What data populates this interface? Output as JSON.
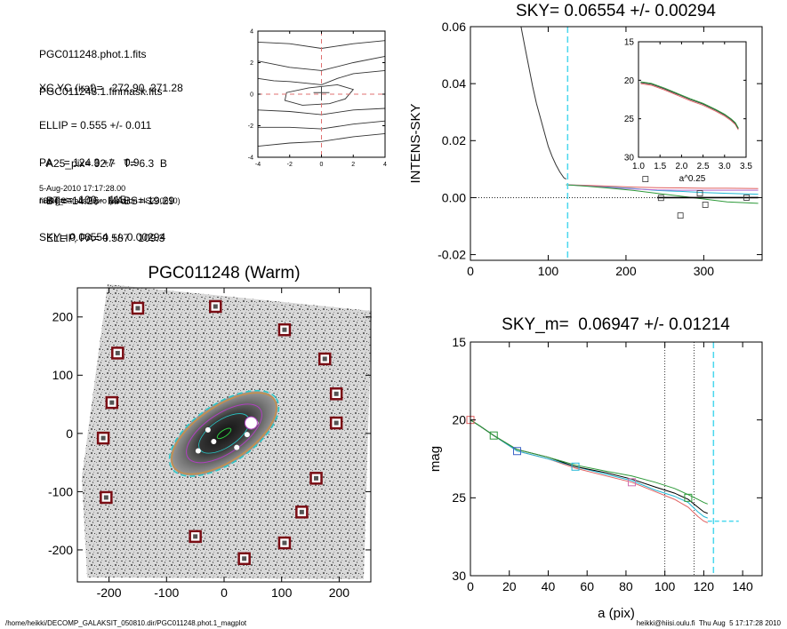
{
  "info": {
    "lines_top": [
      "PGC011248.phot.1.fits",
      "PGC011248.1.finmask.fits"
    ],
    "lines_mid": [
      "XC,YC (iraf)=   272.90, 271.28",
      "ELLIP = 0.555 +/- 0.011",
      "PA    = 124.3 +/-   0.9",
      "range=  100.-  115.",
      "SKY= 0.06554 +/- 0.00294"
    ],
    "lines_low": [
      "A25_pix= 92.7   T= 6.3  B",
      "BT=  14.26   MABS=-19.29",
      "ELLIP, PA= 0.587   109.3"
    ],
    "timestamp": "5-Aug-2010 17:17:28.00",
    "program": "make_datalist0.pro (version HS230610)"
  },
  "footer": {
    "path": "/home/heikki/DECOMP_GALAKSIT_050810.dir/PGC011248.phot.1_magplot",
    "user_date": "heikki@hiisi.oulu.fi  Thu Aug  5 17:17:28 2010"
  },
  "chart_data": [
    {
      "id": "contour-panel",
      "type": "contour",
      "xlim": [
        -4,
        4
      ],
      "ylim": [
        -4,
        4
      ],
      "xticks": [
        -4,
        -2,
        0,
        2,
        4
      ],
      "yticks": [
        -4,
        -2,
        0,
        2,
        4
      ],
      "xtick_labels": [
        "-4",
        "-2",
        "0",
        "2",
        "4"
      ],
      "ytick_labels": [
        "-4",
        "-2",
        "0",
        "2",
        "4"
      ],
      "guide_x": 0,
      "guide_y": 0,
      "colors": {
        "contour": "#333333",
        "guide": "#e07070"
      }
    },
    {
      "id": "sky-panel",
      "type": "line",
      "title": "SKY= 0.06554 +/- 0.00294",
      "ylabel": "INTENS-SKY",
      "xlim": [
        0,
        375
      ],
      "ylim": [
        -0.022,
        0.06
      ],
      "xticks": [
        0,
        100,
        200,
        300
      ],
      "yticks": [
        -0.02,
        0.0,
        0.02,
        0.04,
        0.06
      ],
      "xtick_labels": [
        "0",
        "100",
        "200",
        "300"
      ],
      "ytick_labels": [
        "-0.02",
        "0.00",
        "0.02",
        "0.04",
        "0.06"
      ],
      "vline_x": 125,
      "profile": {
        "x": [
          65,
          70,
          75,
          80,
          85,
          90,
          95,
          100,
          105,
          110,
          115,
          120,
          123
        ],
        "y": [
          0.06,
          0.053,
          0.046,
          0.039,
          0.033,
          0.028,
          0.023,
          0.018,
          0.0145,
          0.0115,
          0.009,
          0.007,
          0.0065
        ]
      },
      "sky_lines": [
        {
          "color": "#22b8d6",
          "x": [
            123,
            150,
            180,
            210,
            240,
            270,
            300,
            330,
            370
          ],
          "y": [
            0.0045,
            0.0042,
            0.0037,
            0.0032,
            0.0025,
            0.0022,
            0.0018,
            0.0015,
            0.0012
          ]
        },
        {
          "color": "#e06060",
          "x": [
            123,
            150,
            180,
            210,
            240,
            270,
            300,
            330,
            370
          ],
          "y": [
            0.0045,
            0.0043,
            0.004,
            0.0037,
            0.0035,
            0.0034,
            0.0033,
            0.0033,
            0.0032
          ]
        },
        {
          "color": "#b06ad0",
          "x": [
            123,
            150,
            180,
            210,
            240,
            270,
            300,
            330,
            370
          ],
          "y": [
            0.0045,
            0.0041,
            0.0035,
            0.003,
            0.0027,
            0.0026,
            0.0026,
            0.0026,
            0.0026
          ]
        },
        {
          "color": "#2e9a3a",
          "x": [
            123,
            150,
            180,
            210,
            240,
            270,
            300,
            330,
            370
          ],
          "y": [
            0.0045,
            0.004,
            0.0033,
            0.0025,
            0.0015,
            0.0005,
            -0.0005,
            -0.0015,
            -0.002
          ]
        },
        {
          "color": "#000000",
          "x": [
            240,
            370
          ],
          "y": [
            0.0,
            0.0
          ]
        }
      ],
      "squares": {
        "x": [
          225,
          245,
          270,
          295,
          302,
          355
        ],
        "y": [
          0.0065,
          -0.0001,
          -0.0063,
          0.0015,
          -0.0025,
          0.0
        ]
      },
      "inset": {
        "xlim": [
          1.0,
          3.5
        ],
        "ylim": [
          15,
          30
        ],
        "xticks": [
          1.0,
          1.5,
          2.0,
          2.5,
          3.0,
          3.5
        ],
        "yticks": [
          15,
          20,
          25,
          30
        ],
        "xtick_labels": [
          "1.0",
          "1.5",
          "2.0",
          "2.5",
          "3.0",
          "3.5"
        ],
        "ytick_labels": [
          "15",
          "20",
          "25",
          "30"
        ],
        "xlabel": "a^0.25",
        "x": [
          1.05,
          1.3,
          1.6,
          1.9,
          2.2,
          2.5,
          2.8,
          3.0,
          3.15,
          3.25,
          3.32
        ],
        "y": [
          20.2,
          20.4,
          21.0,
          21.7,
          22.4,
          23.0,
          23.8,
          24.4,
          25.0,
          25.5,
          26.2
        ]
      }
    },
    {
      "id": "galaxy-image",
      "type": "image",
      "title": "PGC011248 (Warm)",
      "xlim": [
        -255,
        255
      ],
      "ylim": [
        -255,
        250
      ],
      "xticks": [
        -200,
        -100,
        0,
        100,
        200
      ],
      "yticks": [
        -200,
        -100,
        0,
        100,
        200
      ],
      "xtick_labels": [
        "-200",
        "-100",
        "0",
        "100",
        "200"
      ],
      "ytick_labels": [
        "-200",
        "-100",
        "0",
        "100",
        "200"
      ],
      "ellipse": {
        "cx": 0,
        "cy": 0,
        "a": 105,
        "b": 47,
        "angle": 34
      },
      "star_marks": [
        [
          -150,
          215
        ],
        [
          -15,
          218
        ],
        [
          105,
          178
        ],
        [
          -185,
          138
        ],
        [
          175,
          128
        ],
        [
          -195,
          53
        ],
        [
          195,
          68
        ],
        [
          -210,
          -8
        ],
        [
          195,
          18
        ],
        [
          -205,
          -110
        ],
        [
          160,
          -77
        ],
        [
          135,
          -135
        ],
        [
          -50,
          -177
        ],
        [
          105,
          -188
        ],
        [
          35,
          -215
        ]
      ],
      "colors": {
        "marker": "#7a0d14",
        "ellipse_outer": "#c89048",
        "ellipse_dash": "#28c8c8",
        "isophote": "#b040c0"
      }
    },
    {
      "id": "mag-panel",
      "type": "line",
      "title": "SKY_m=  0.06947 +/- 0.01214",
      "xlabel": "a (pix)",
      "ylabel": "mag",
      "xlim": [
        0,
        150
      ],
      "ylim": [
        15,
        30
      ],
      "y_inverted": true,
      "xticks": [
        0,
        20,
        40,
        60,
        80,
        100,
        120,
        140
      ],
      "yticks": [
        15,
        20,
        25,
        30
      ],
      "xtick_labels": [
        "0",
        "20",
        "40",
        "60",
        "80",
        "100",
        "120",
        "140"
      ],
      "ytick_labels": [
        "15",
        "20",
        "25",
        "30"
      ],
      "dotted_vlines": [
        100,
        115
      ],
      "dashed_vline": 125,
      "hline_segment": {
        "x": [
          122,
          138
        ],
        "y": 26.5
      },
      "series": [
        {
          "color": "#e06060",
          "x": [
            0,
            5,
            12,
            24,
            40,
            54,
            70,
            83,
            95,
            105,
            112,
            117,
            120,
            122
          ],
          "y": [
            20.0,
            20.4,
            21.0,
            22.0,
            22.5,
            23.1,
            23.6,
            24.0,
            24.6,
            25.1,
            25.6,
            26.2,
            26.5,
            26.6
          ]
        },
        {
          "color": "#22b8d6",
          "x": [
            0,
            5,
            12,
            24,
            40,
            54,
            70,
            83,
            95,
            105,
            112,
            117,
            120,
            122
          ],
          "y": [
            20.0,
            20.4,
            21.0,
            22.0,
            22.5,
            23.0,
            23.5,
            23.9,
            24.5,
            24.9,
            25.3,
            25.9,
            26.2,
            26.3
          ]
        },
        {
          "color": "#000000",
          "x": [
            0,
            5,
            12,
            24,
            40,
            54,
            70,
            83,
            95,
            105,
            112,
            117,
            120,
            122
          ],
          "y": [
            20.0,
            20.4,
            21.0,
            21.9,
            22.4,
            23.0,
            23.4,
            23.8,
            24.3,
            24.7,
            25.1,
            25.6,
            25.9,
            26.0
          ]
        },
        {
          "color": "#2e9a3a",
          "x": [
            0,
            5,
            12,
            24,
            40,
            54,
            70,
            83,
            95,
            105,
            112,
            117,
            120,
            122
          ],
          "y": [
            20.0,
            20.4,
            21.0,
            21.9,
            22.4,
            22.9,
            23.3,
            23.6,
            24.0,
            24.4,
            24.8,
            25.1,
            25.3,
            25.4
          ]
        }
      ],
      "markers": [
        {
          "color": "#e06060",
          "x": 0,
          "y": 20.0
        },
        {
          "color": "#2e9a3a",
          "x": 12,
          "y": 21.0
        },
        {
          "color": "#3c64c8",
          "x": 24,
          "y": 22.0
        },
        {
          "color": "#22b8d6",
          "x": 54,
          "y": 23.0
        },
        {
          "color": "#d070b0",
          "x": 83,
          "y": 24.0
        },
        {
          "color": "#2e9a3a",
          "x": 112,
          "y": 25.0
        }
      ]
    }
  ]
}
